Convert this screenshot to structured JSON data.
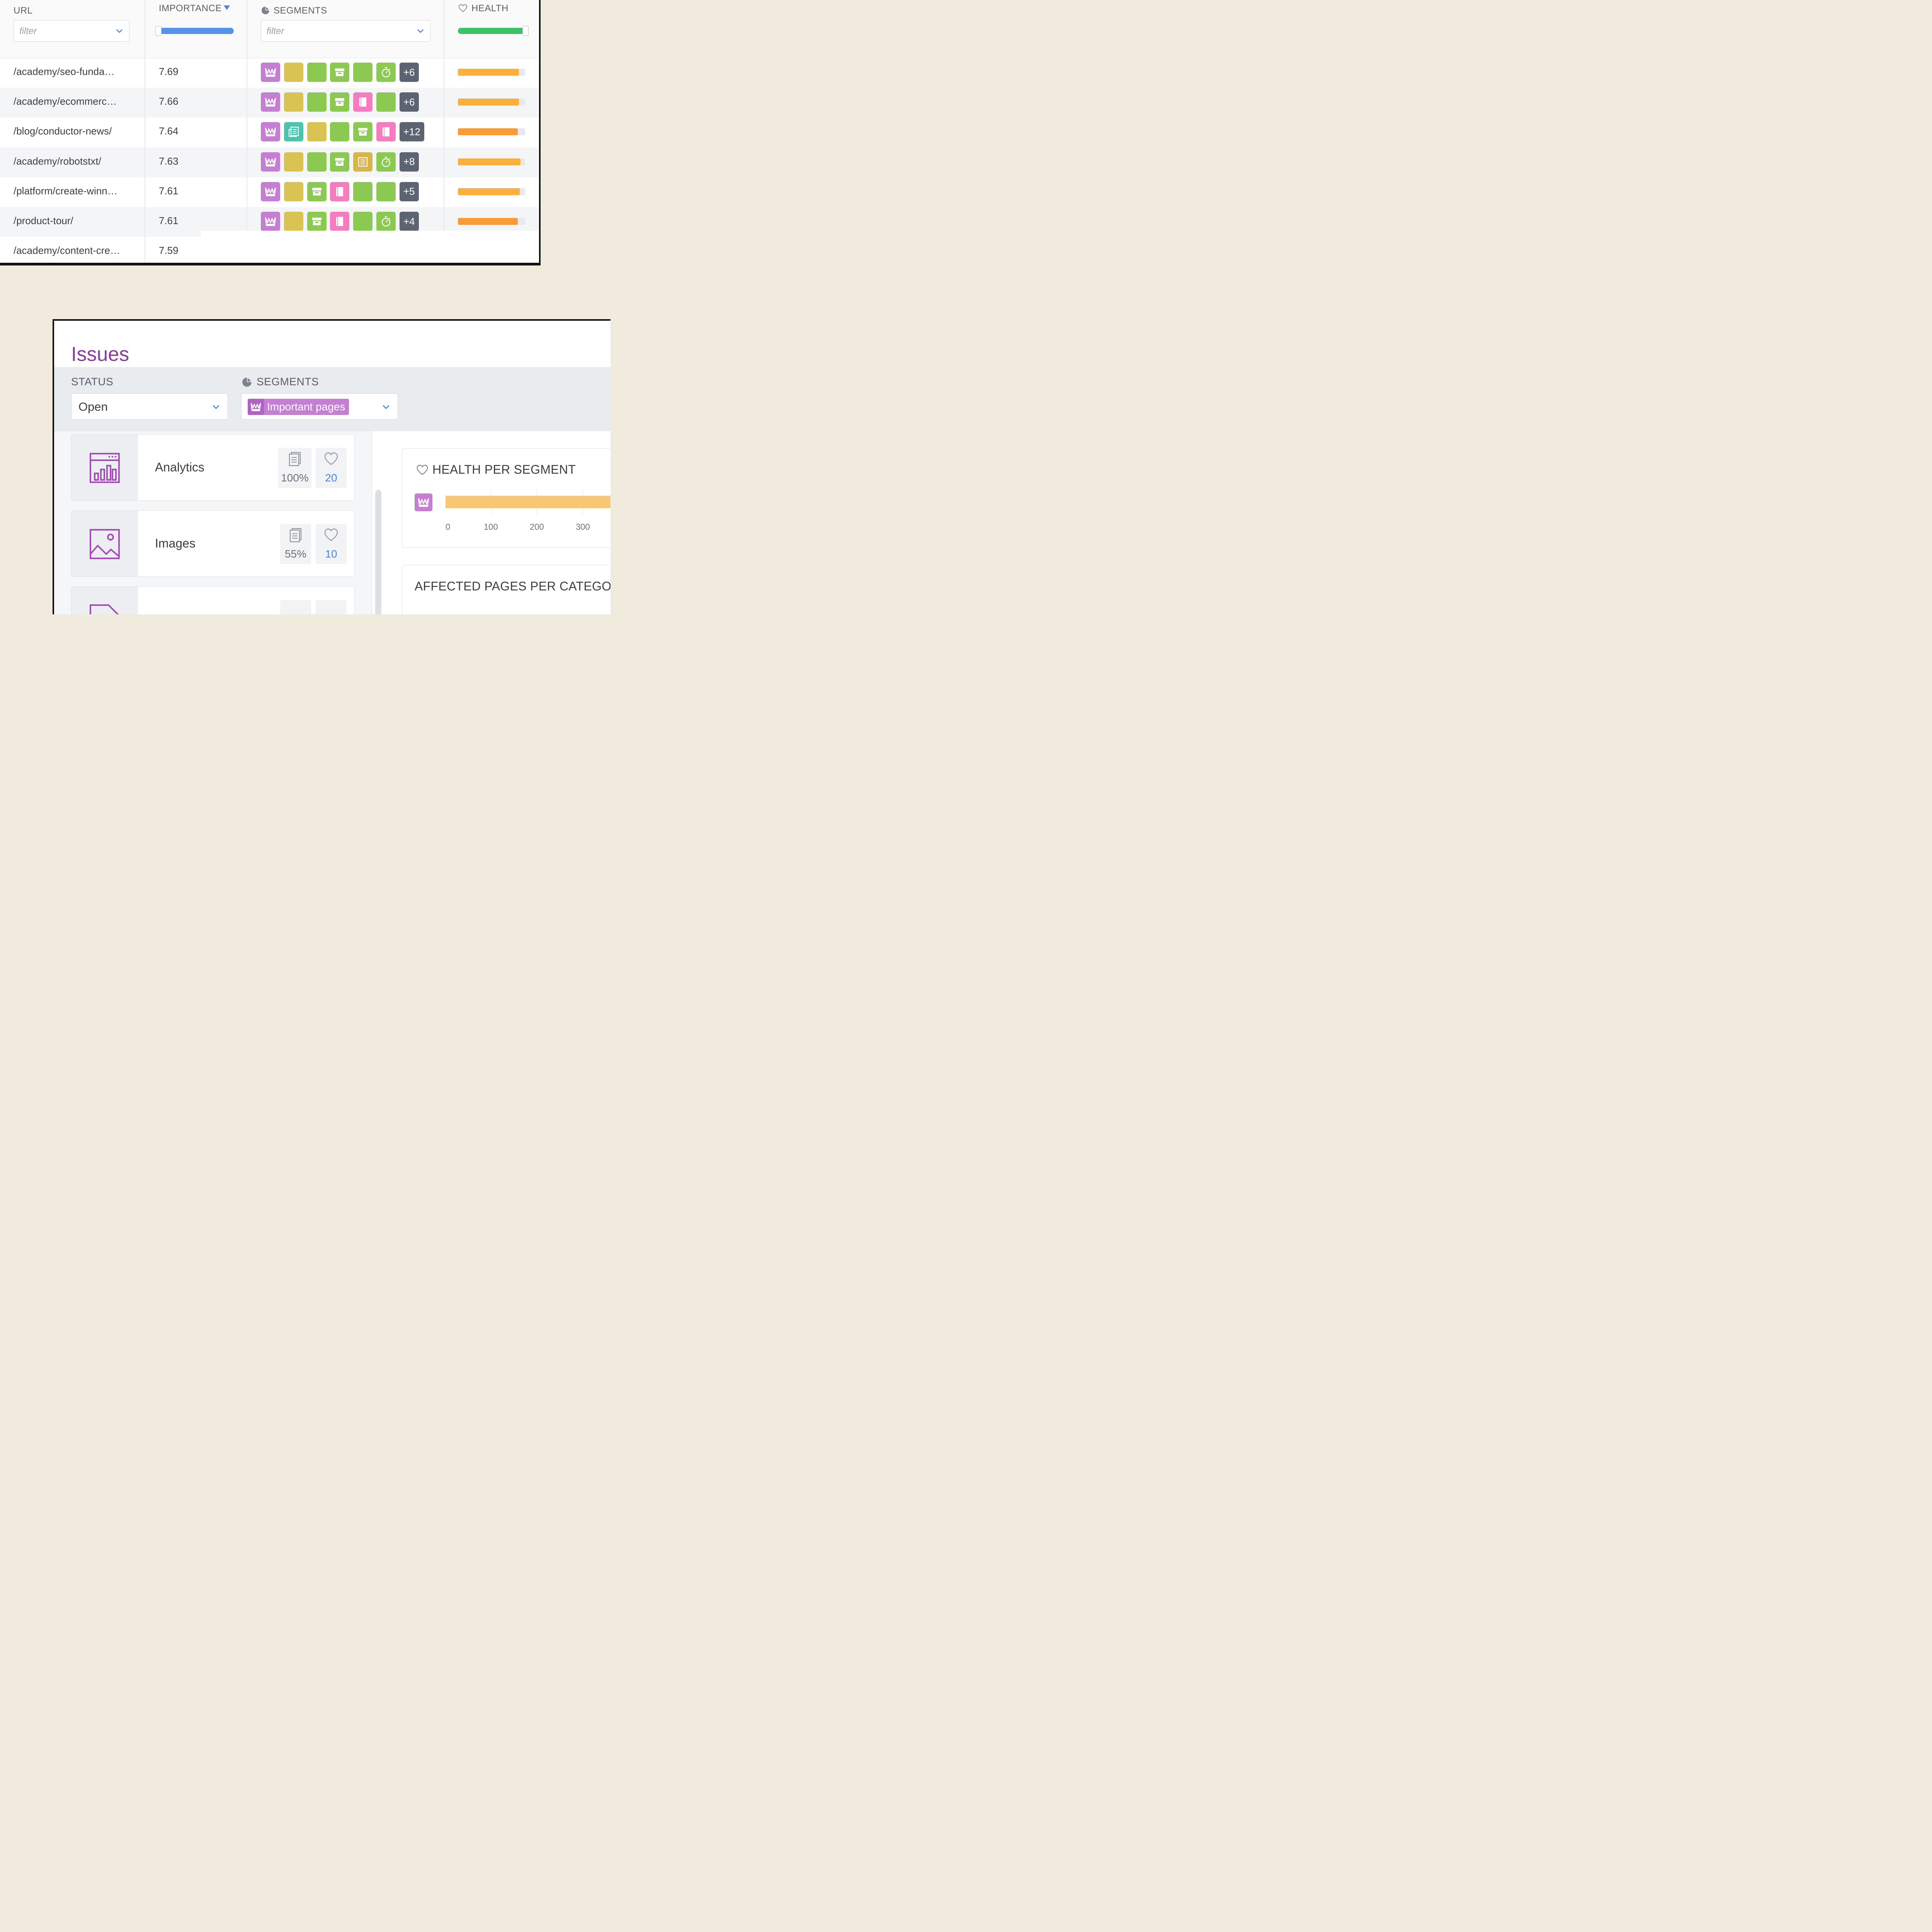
{
  "table": {
    "headers": {
      "url": "URL",
      "importance": "IMPORTANCE",
      "segments": "SEGMENTS",
      "health": "HEALTH"
    },
    "url_filter_placeholder": "filter",
    "segments_filter_placeholder": "filter",
    "importance_slider_fill": 1.0,
    "health_slider_fill": 1.0,
    "rows": [
      {
        "url": "/academy/seo-funda…",
        "importance": "7.69",
        "segments": [
          "crown",
          "yellow",
          "green",
          "archive",
          "green",
          "timer"
        ],
        "more": "+6",
        "health": 0.91,
        "health_color": "#fbb03b"
      },
      {
        "url": "/academy/ecommerc…",
        "importance": "7.66",
        "segments": [
          "crown",
          "yellow",
          "green",
          "archive",
          "book",
          "green"
        ],
        "more": "+6",
        "health": 0.91,
        "health_color": "#fbb03b"
      },
      {
        "url": "/blog/conductor-news/",
        "importance": "7.64",
        "segments": [
          "crown",
          "news",
          "yellow",
          "green",
          "archive",
          "book"
        ],
        "more": "+12",
        "health": 0.89,
        "health_color": "#fb9b36"
      },
      {
        "url": "/academy/robotstxt/",
        "importance": "7.63",
        "segments": [
          "crown",
          "yellow",
          "green",
          "archive",
          "doc",
          "timer"
        ],
        "more": "+8",
        "health": 0.93,
        "health_color": "#fbb03b"
      },
      {
        "url": "/platform/create-winn…",
        "importance": "7.61",
        "segments": [
          "crown",
          "yellow",
          "archive",
          "book",
          "green",
          "green"
        ],
        "more": "+5",
        "health": 0.92,
        "health_color": "#fbb03b"
      },
      {
        "url": "/product-tour/",
        "importance": "7.61",
        "segments": [
          "crown",
          "yellow",
          "archive",
          "book",
          "green",
          "timer"
        ],
        "more": "+4",
        "health": 0.89,
        "health_color": "#fb9b36"
      },
      {
        "url": "/academy/content-cre…",
        "importance": "7.59",
        "segments": [],
        "more": "",
        "health": 0.92,
        "health_color": "#fbb03b"
      }
    ]
  },
  "issues": {
    "title": "Issues",
    "status_label": "STATUS",
    "status_value": "Open",
    "segments_label": "SEGMENTS",
    "segment_chip": "Important pages",
    "categories": [
      {
        "name": "Analytics",
        "icon": "analytics-icon",
        "pages_pct": "100%",
        "health": "20"
      },
      {
        "name": "Images",
        "icon": "image-icon",
        "pages_pct": "55%",
        "health": "10"
      }
    ],
    "health_per_segment": {
      "title": "HEALTH PER SEGMENT",
      "ticks": [
        "0",
        "100",
        "200",
        "300"
      ]
    },
    "affected_pages_title": "AFFECTED PAGES PER CATEGO"
  },
  "colors": {
    "crown": "#c47fd3",
    "yellow": "#d9c353",
    "green": "#8bc952",
    "news": "#4dc4b0",
    "book": "#f57cbf",
    "doc": "#d6b54a",
    "more": "#5b6470",
    "importance_slider": "#5592e8",
    "health_slider": "#3cc36a",
    "issues_title": "#8a3d9a",
    "health_bar_chart": "#f8c674"
  }
}
